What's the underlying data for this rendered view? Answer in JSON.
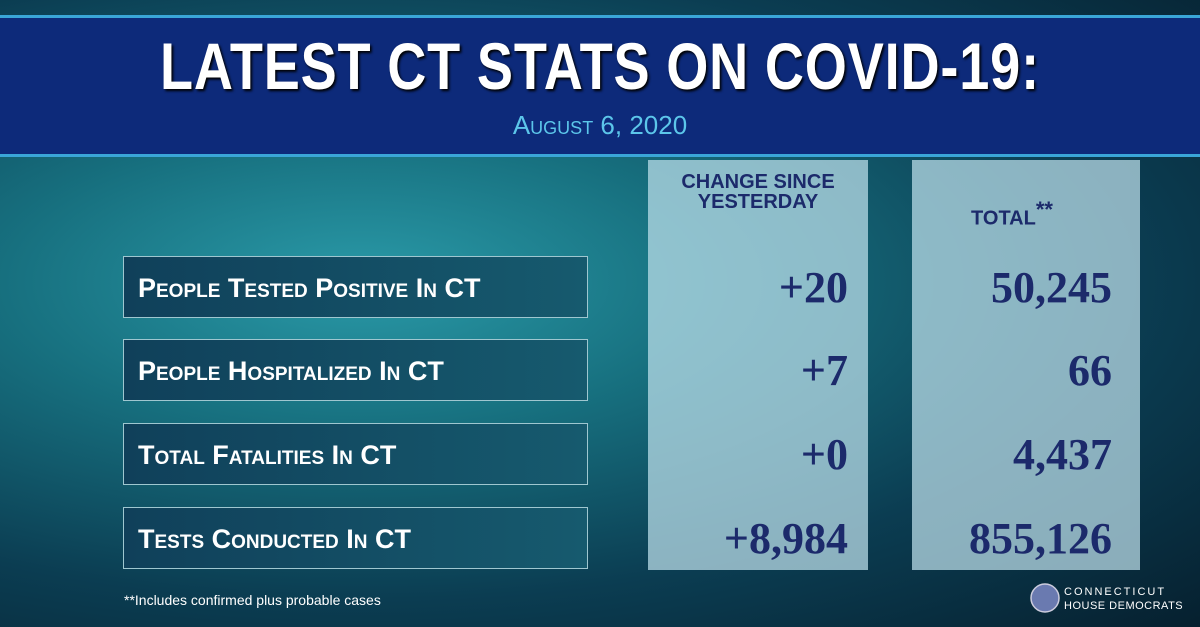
{
  "header": {
    "title": "LATEST CT STATS ON COVID-19:",
    "date": "August 6, 2020"
  },
  "table": {
    "columns": [
      "CHANGE SINCE YESTERDAY",
      "TOTAL"
    ],
    "total_marker": "**",
    "rows": [
      [
        "People Tested Positive In CT",
        "+20",
        "50,245"
      ],
      [
        "People Hospitalized In CT",
        "+7",
        "66"
      ],
      [
        "Total Fatalities In CT",
        "+0",
        "4,437"
      ],
      [
        "Tests Conducted In CT",
        "+8,984",
        "855,126"
      ]
    ]
  },
  "footnote": "**Includes confirmed plus probable cases",
  "logo": {
    "line1": "CONNECTICUT",
    "line2": "HOUSE DEMOCRATS"
  }
}
